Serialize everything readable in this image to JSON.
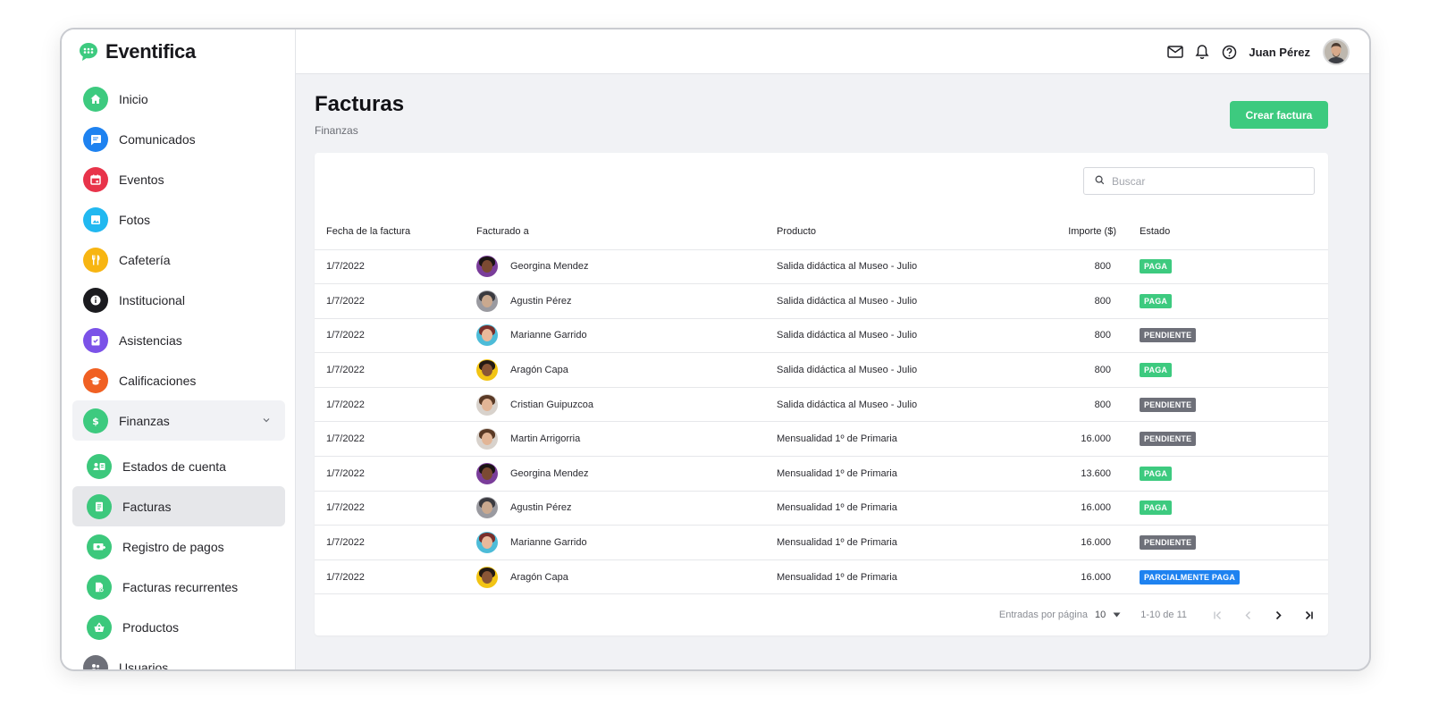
{
  "app": {
    "name": "Eventifica",
    "brand_color": "#3dca7f"
  },
  "user": {
    "name": "Juan Pérez"
  },
  "sidebar": {
    "items": [
      {
        "label": "Inicio",
        "icon": "home-icon",
        "color": "#3dca7f"
      },
      {
        "label": "Comunicados",
        "icon": "message-icon",
        "color": "#1e82f0"
      },
      {
        "label": "Eventos",
        "icon": "calendar-icon",
        "color": "#e8334a"
      },
      {
        "label": "Fotos",
        "icon": "image-icon",
        "color": "#21b8f0"
      },
      {
        "label": "Cafetería",
        "icon": "cutlery-icon",
        "color": "#f7b512"
      },
      {
        "label": "Institucional",
        "icon": "info-icon",
        "color": "#1b1b1f"
      },
      {
        "label": "Asistencias",
        "icon": "checklist-icon",
        "color": "#7b52e8"
      },
      {
        "label": "Calificaciones",
        "icon": "graduation-cap-icon",
        "color": "#f06023"
      },
      {
        "label": "Finanzas",
        "icon": "dollar-icon",
        "color": "#3dca7f"
      }
    ],
    "finanzas_sub": [
      {
        "label": "Estados de cuenta",
        "icon": "account-statement-icon"
      },
      {
        "label": "Facturas",
        "icon": "invoice-icon"
      },
      {
        "label": "Registro de pagos",
        "icon": "payment-register-icon"
      },
      {
        "label": "Facturas recurrentes",
        "icon": "recurring-invoice-icon"
      },
      {
        "label": "Productos",
        "icon": "basket-icon"
      }
    ],
    "partial_item": {
      "label": "Usuarios",
      "icon": "users-icon",
      "color": "#6e7079"
    }
  },
  "page": {
    "title": "Facturas",
    "subtitle": "Finanzas",
    "create_button": "Crear factura",
    "search_placeholder": "Buscar"
  },
  "table": {
    "headers": [
      "Fecha de la factura",
      "Facturado a",
      "Producto",
      "Importe ($)",
      "Estado"
    ],
    "rows": [
      {
        "date": "1/7/2022",
        "name": "Georgina Mendez",
        "product": "Salida didáctica al Museo - Julio",
        "amount": "800",
        "status": "PAGA"
      },
      {
        "date": "1/7/2022",
        "name": "Agustin Pérez",
        "product": "Salida didáctica al Museo - Julio",
        "amount": "800",
        "status": "PAGA"
      },
      {
        "date": "1/7/2022",
        "name": "Marianne Garrido",
        "product": "Salida didáctica al Museo - Julio",
        "amount": "800",
        "status": "PENDIENTE"
      },
      {
        "date": "1/7/2022",
        "name": "Aragón Capa",
        "product": "Salida didáctica al Museo - Julio",
        "amount": "800",
        "status": "PAGA"
      },
      {
        "date": "1/7/2022",
        "name": "Cristian Guipuzcoa",
        "product": "Salida didáctica al Museo - Julio",
        "amount": "800",
        "status": "PENDIENTE"
      },
      {
        "date": "1/7/2022",
        "name": "Martin Arrigorria",
        "product": "Mensualidad 1º de Primaria",
        "amount": "16.000",
        "status": "PENDIENTE"
      },
      {
        "date": "1/7/2022",
        "name": "Georgina Mendez",
        "product": "Mensualidad 1º de Primaria",
        "amount": "13.600",
        "status": "PAGA"
      },
      {
        "date": "1/7/2022",
        "name": "Agustin Pérez",
        "product": "Mensualidad 1º de Primaria",
        "amount": "16.000",
        "status": "PAGA"
      },
      {
        "date": "1/7/2022",
        "name": "Marianne Garrido",
        "product": "Mensualidad 1º de Primaria",
        "amount": "16.000",
        "status": "PENDIENTE"
      },
      {
        "date": "1/7/2022",
        "name": "Aragón Capa",
        "product": "Mensualidad 1º de Primaria",
        "amount": "16.000",
        "status": "PARCIALMENTE PAGA"
      }
    ]
  },
  "pagination": {
    "entries_label": "Entradas por página",
    "per_page": "10",
    "range": "1-10 de 11"
  },
  "status_colors": {
    "PAGA": "#3dca7f",
    "PENDIENTE": "#6e7079",
    "PARCIALMENTE PAGA": "#1e82f0"
  }
}
